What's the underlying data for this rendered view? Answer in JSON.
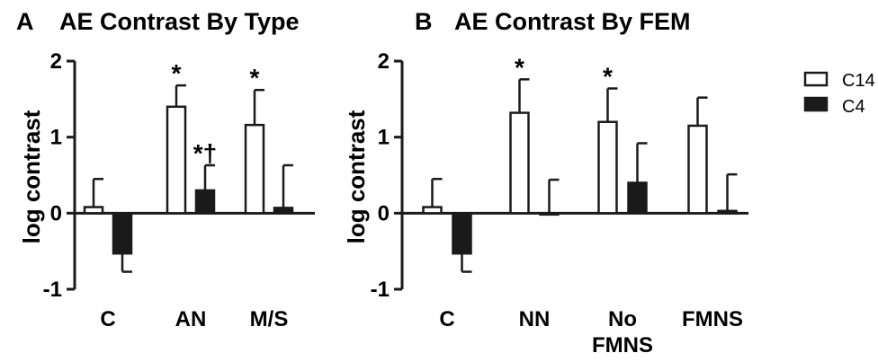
{
  "colors": {
    "C14_fill": "#ffffff",
    "C4_fill": "#1a1a1a",
    "stroke": "#1a1a1a"
  },
  "legend": {
    "position": "right",
    "entries": [
      {
        "name": "C14",
        "fill": "#ffffff"
      },
      {
        "name": "C4",
        "fill": "#1a1a1a"
      }
    ]
  },
  "chart_data": [
    {
      "type": "bar",
      "panel": "A",
      "title": "AE Contrast By Type",
      "ylabel": "log contrast",
      "ylim": [
        -1,
        2
      ],
      "yticks": [
        -1,
        0,
        1,
        2
      ],
      "categories": [
        "C",
        "AN",
        "M/S"
      ],
      "category_lines": [
        [
          "C"
        ],
        [
          "AN"
        ],
        [
          "M/S"
        ]
      ],
      "series": [
        {
          "name": "C14",
          "values": [
            0.08,
            1.4,
            1.16
          ],
          "errors": [
            0.37,
            0.28,
            0.46
          ]
        },
        {
          "name": "C4",
          "values": [
            -0.53,
            0.3,
            0.07
          ],
          "errors": [
            0.24,
            0.33,
            0.56
          ]
        }
      ],
      "annotations": [
        {
          "text": "*",
          "category": 1,
          "series": 0
        },
        {
          "text": "*",
          "category": 2,
          "series": 0
        },
        {
          "text": "*†",
          "category": 1,
          "series": 1
        }
      ]
    },
    {
      "type": "bar",
      "panel": "B",
      "title": "AE Contrast By FEM",
      "ylabel": "log contrast",
      "ylim": [
        -1,
        2
      ],
      "yticks": [
        -1,
        0,
        1,
        2
      ],
      "categories": [
        "C",
        "NN",
        "No FMNS",
        "FMNS"
      ],
      "category_lines": [
        [
          "C"
        ],
        [
          "NN"
        ],
        [
          "No",
          "FMNS"
        ],
        [
          "FMNS"
        ]
      ],
      "series": [
        {
          "name": "C14",
          "values": [
            0.08,
            1.32,
            1.2,
            1.15
          ],
          "errors": [
            0.37,
            0.44,
            0.44,
            0.37
          ]
        },
        {
          "name": "C4",
          "values": [
            -0.53,
            0.0,
            0.4,
            0.03
          ],
          "errors": [
            0.24,
            0.44,
            0.52,
            0.48
          ]
        }
      ],
      "annotations": [
        {
          "text": "*",
          "category": 1,
          "series": 0
        },
        {
          "text": "*",
          "category": 2,
          "series": 0
        }
      ]
    }
  ]
}
